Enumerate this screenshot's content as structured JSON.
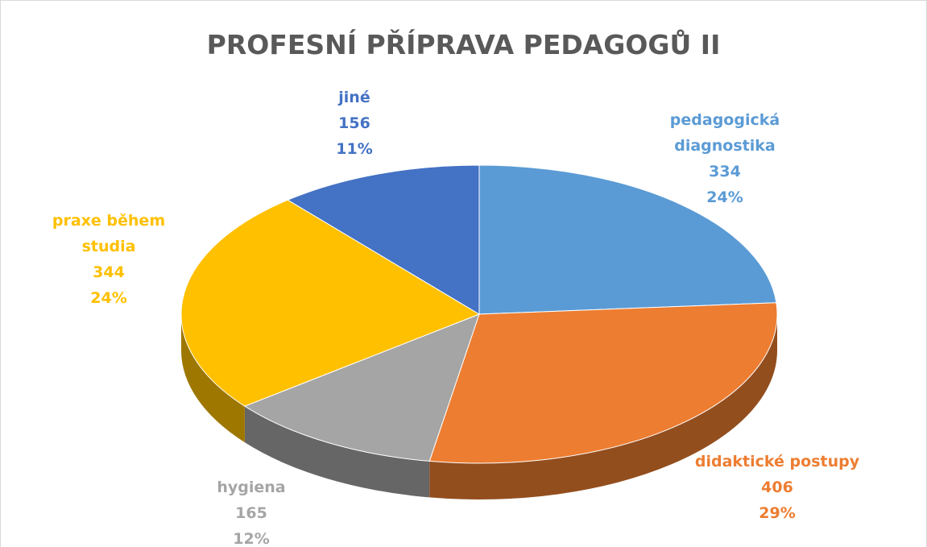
{
  "chart_data": {
    "type": "pie",
    "title": "PROFESNÍ PŘÍPRAVA PEDAGOGŮ II",
    "categories": [
      "pedagogická diagnostika",
      "didaktické postupy",
      "hygiena",
      "praxe během studia",
      "jiné"
    ],
    "values": [
      334,
      406,
      165,
      344,
      156
    ],
    "percent_labels": [
      "24%",
      "29%",
      "12%",
      "24%",
      "11%"
    ],
    "colors": [
      "#5b9bd5",
      "#ed7d31",
      "#a5a5a5",
      "#ffc000",
      "#4472c4"
    ]
  }
}
